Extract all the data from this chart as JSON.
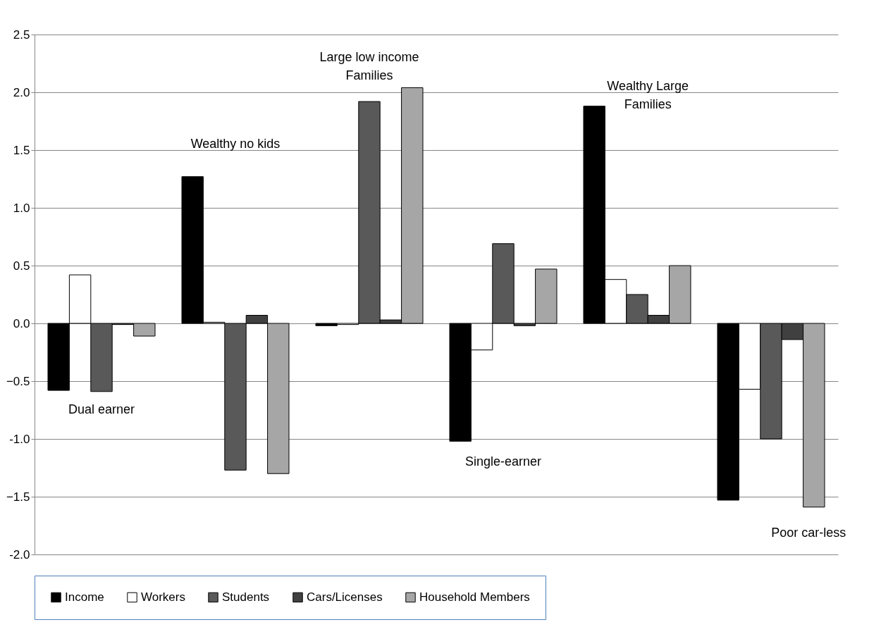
{
  "chart_data": {
    "type": "bar",
    "categories": [
      "Dual earner",
      "Wealthy no kids",
      "Large low income Families",
      "Single-earner",
      "Wealthy Large Families",
      "Poor car-less"
    ],
    "series": [
      {
        "name": "Income",
        "color": "#000000",
        "values": [
          -0.58,
          1.27,
          -0.02,
          -1.02,
          1.88,
          -1.53
        ]
      },
      {
        "name": "Workers",
        "color": "#ffffff",
        "values": [
          0.42,
          0.01,
          -0.01,
          -0.23,
          0.38,
          -0.57
        ]
      },
      {
        "name": "Students",
        "color": "#595959",
        "values": [
          -0.59,
          -1.27,
          1.92,
          0.69,
          0.25,
          -1.0
        ]
      },
      {
        "name": "Cars/Licenses",
        "color": "#404040",
        "values": [
          -0.01,
          0.07,
          0.03,
          -0.02,
          0.07,
          -0.14
        ]
      },
      {
        "name": "Household Members",
        "color": "#a6a6a6",
        "values": [
          -0.11,
          -1.3,
          2.04,
          0.47,
          0.5,
          -1.59
        ]
      }
    ],
    "ylim": [
      -2,
      2.5
    ],
    "yticks": [
      {
        "value": -2,
        "label": "-2.0"
      },
      -1.5,
      {
        "value": -1,
        "label": "-1.0"
      },
      -0.5,
      {
        "value": 0,
        "label": "0.0"
      },
      0.5,
      {
        "value": 1,
        "label": "1.0"
      },
      1.5,
      {
        "value": 2,
        "label": "2.0"
      },
      2.5
    ],
    "grid": "y",
    "legend": "bottom",
    "tick_labels": "y"
  }
}
